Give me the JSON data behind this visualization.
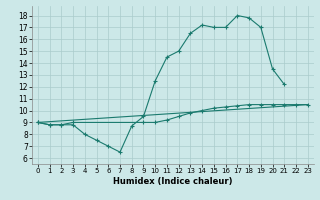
{
  "xlabel": "Humidex (Indice chaleur)",
  "bg_color": "#cce8e8",
  "line_color": "#1a7a6e",
  "grid_color": "#aacccc",
  "xlim": [
    -0.5,
    23.5
  ],
  "ylim": [
    5.5,
    18.8
  ],
  "yticks": [
    6,
    7,
    8,
    9,
    10,
    11,
    12,
    13,
    14,
    15,
    16,
    17,
    18
  ],
  "xticks": [
    0,
    1,
    2,
    3,
    4,
    5,
    6,
    7,
    8,
    9,
    10,
    11,
    12,
    13,
    14,
    15,
    16,
    17,
    18,
    19,
    20,
    21,
    22,
    23
  ],
  "series1_x": [
    0,
    1,
    2,
    3,
    4,
    5,
    6,
    7,
    8,
    9,
    10,
    11,
    12,
    13,
    14,
    15,
    16,
    17,
    18,
    19,
    20,
    21
  ],
  "series1_y": [
    9.0,
    8.8,
    8.8,
    8.8,
    8.0,
    7.5,
    7.0,
    6.5,
    8.7,
    9.5,
    12.5,
    14.5,
    15.0,
    16.5,
    17.2,
    17.0,
    17.0,
    18.0,
    17.8,
    17.0,
    13.5,
    12.2
  ],
  "series2_x": [
    0,
    1,
    2,
    3,
    9,
    10,
    11,
    12,
    13,
    14,
    15,
    16,
    17,
    18,
    19,
    20,
    21,
    22,
    23
  ],
  "series2_y": [
    9.0,
    8.8,
    8.8,
    9.0,
    9.0,
    9.0,
    9.2,
    9.5,
    9.8,
    10.0,
    10.2,
    10.3,
    10.4,
    10.5,
    10.5,
    10.5,
    10.5,
    10.5,
    10.5
  ],
  "series3_x": [
    0,
    23
  ],
  "series3_y": [
    9.0,
    10.5
  ]
}
